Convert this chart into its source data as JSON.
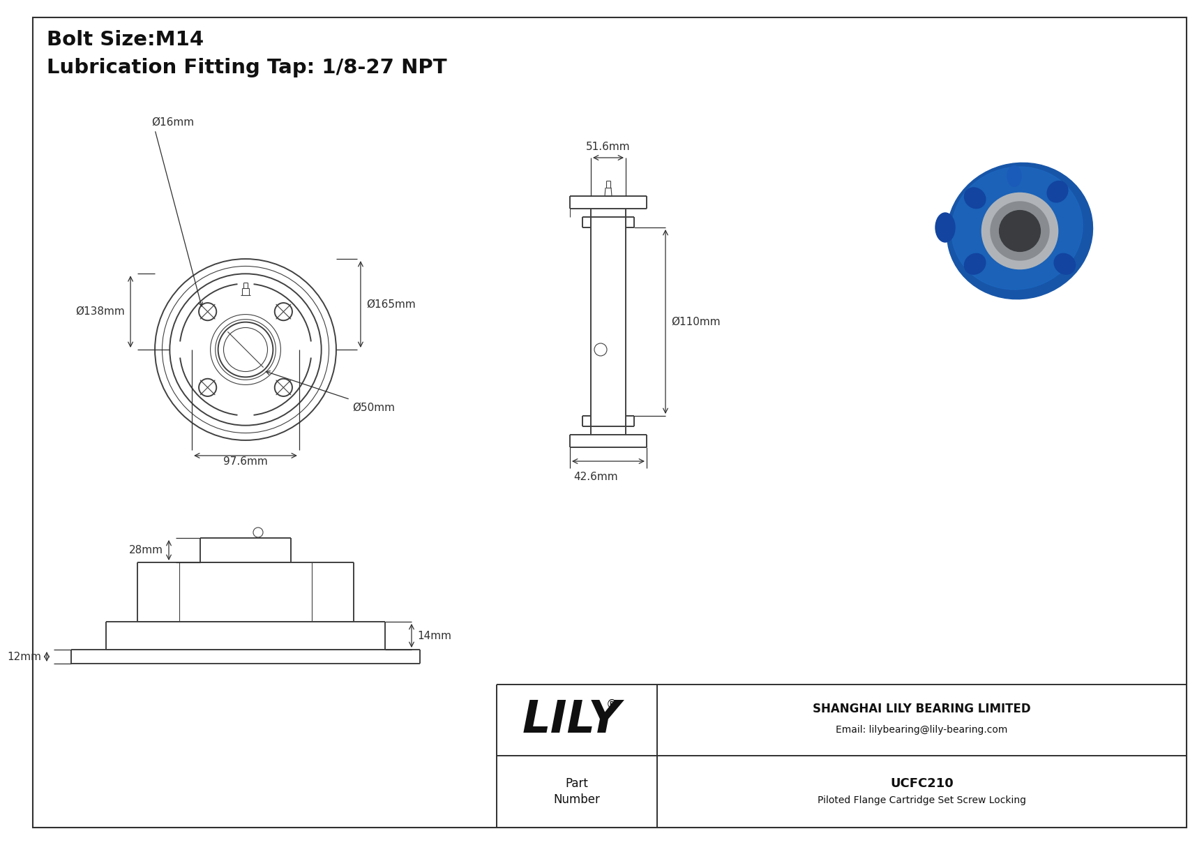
{
  "title_line1": "Bolt Size:M14",
  "title_line2": "Lubrication Fitting Tap: 1/8-27 NPT",
  "bg_color": "#ffffff",
  "line_color": "#404040",
  "dim_color": "#303030",
  "border_color": "#303030",
  "part_number": "UCFC210",
  "part_desc": "Piloted Flange Cartridge Set Screw Locking",
  "company": "SHANGHAI LILY BEARING LIMITED",
  "email": "Email: lilybearing@lily-bearing.com",
  "lily_text": "LILY",
  "dims": {
    "d16": "Ø16mm",
    "d138": "Ø138mm",
    "d165": "Ø165mm",
    "d50": "Ø50mm",
    "d97_6": "97.6mm",
    "d51_6": "51.6mm",
    "d110": "Ø110mm",
    "d42_6": "42.6mm",
    "h28": "28mm",
    "h14": "14mm",
    "h12": "12mm"
  }
}
